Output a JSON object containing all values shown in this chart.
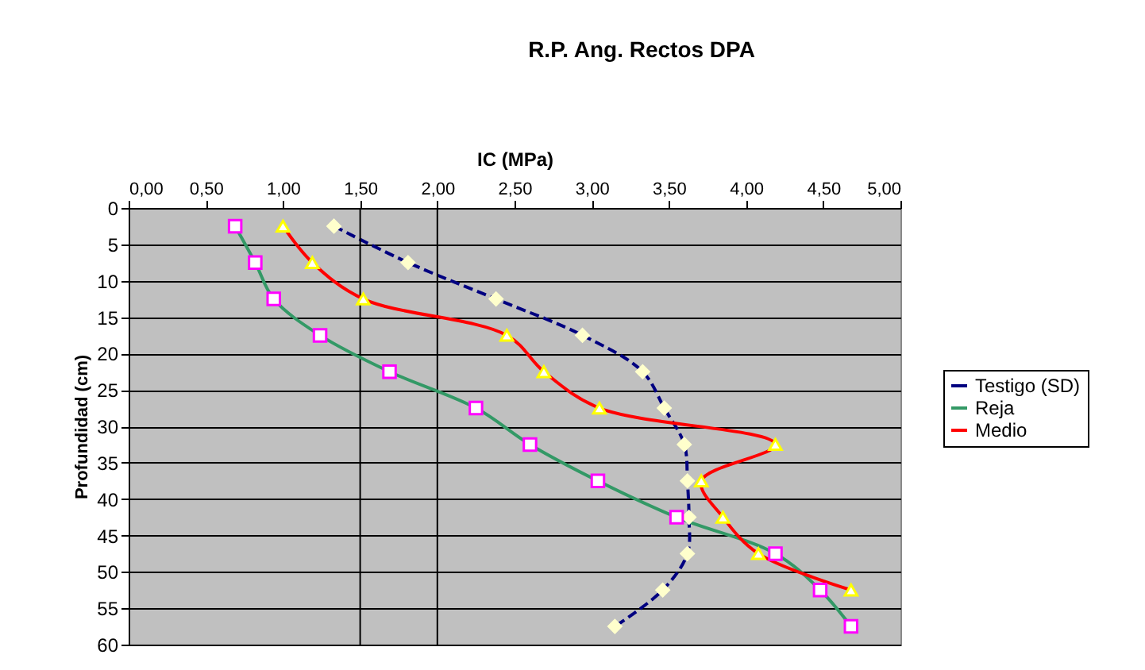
{
  "chart_data": {
    "type": "line",
    "title": "R.P. Ang.  Rectos DPA",
    "xlabel": "IC (MPa)",
    "ylabel": "Profundidad (cm)",
    "xlim": [
      0,
      5
    ],
    "xticks": [
      {
        "value": 0,
        "label": "0,00"
      },
      {
        "value": 0.5,
        "label": "0,50"
      },
      {
        "value": 1,
        "label": "1,00"
      },
      {
        "value": 1.5,
        "label": "1,50"
      },
      {
        "value": 2,
        "label": "2,00"
      },
      {
        "value": 2.5,
        "label": "2,50"
      },
      {
        "value": 3,
        "label": "3,00"
      },
      {
        "value": 3.5,
        "label": "3,50"
      },
      {
        "value": 4,
        "label": "4,00"
      },
      {
        "value": 4.5,
        "label": "4,50"
      },
      {
        "value": 5,
        "label": "5,00"
      }
    ],
    "ylim": [
      60,
      0
    ],
    "yticks": [
      0,
      5,
      10,
      15,
      20,
      25,
      30,
      35,
      40,
      45,
      50,
      55,
      60
    ],
    "grid": "y",
    "legend": "right",
    "ref_lines": [
      {
        "axis": "x",
        "value": 1.5,
        "color": "#000000"
      },
      {
        "axis": "x",
        "value": 2,
        "color": "#000000"
      }
    ],
    "series": [
      {
        "name": "Testigo (SD)",
        "color": "#000080",
        "line_style": "dashed",
        "marker": "diamond",
        "x": [
          1.33,
          1.81,
          2.38,
          2.94,
          3.33,
          3.47,
          3.6,
          3.62,
          3.63,
          3.62,
          3.46,
          3.15
        ],
        "values": [
          2.5,
          7.5,
          12.5,
          17.5,
          22.5,
          27.5,
          32.5,
          37.5,
          42.5,
          47.5,
          52.5,
          57.5
        ]
      },
      {
        "name": "Reja",
        "color": "#339966",
        "line_style": "solid",
        "marker": "square",
        "x": [
          0.69,
          0.82,
          0.94,
          1.24,
          1.69,
          2.25,
          2.6,
          3.04,
          3.55,
          4.19,
          4.48,
          4.68
        ],
        "values": [
          2.5,
          7.5,
          12.5,
          17.5,
          22.5,
          27.5,
          32.5,
          37.5,
          42.5,
          47.5,
          52.5,
          57.5
        ]
      },
      {
        "name": "Medio",
        "color": "#ff0000",
        "line_style": "solid",
        "marker": "triangle",
        "x": [
          1.0,
          1.19,
          1.52,
          2.45,
          2.69,
          3.05,
          4.19,
          3.71,
          3.85,
          4.08,
          4.68
        ],
        "values": [
          2.5,
          7.5,
          12.5,
          17.5,
          22.5,
          27.5,
          32.5,
          37.5,
          42.5,
          47.5,
          52.5
        ]
      }
    ]
  }
}
